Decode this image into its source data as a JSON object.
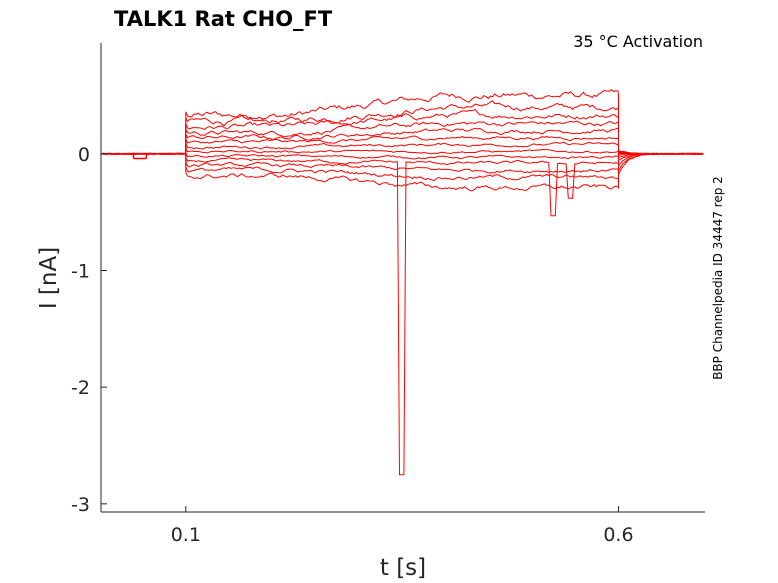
{
  "chart_data": {
    "type": "line",
    "title": "TALK1  Rat  CHO_FT",
    "annotation": "35 °C  Activation",
    "side_label": "BBP Channelpedia ID 34447 rep 2",
    "xlabel": "t [s]",
    "ylabel": "I [nA]",
    "xlim": [
      0.002,
      0.7
    ],
    "ylim": [
      -3.07,
      0.95
    ],
    "x_ticks": [
      {
        "value": 0.1,
        "label": "0.1"
      },
      {
        "value": 0.6,
        "label": "0.6"
      }
    ],
    "y_ticks": [
      {
        "value": 0,
        "label": "0"
      },
      {
        "value": -1,
        "label": "-1"
      },
      {
        "value": -2,
        "label": "-2"
      },
      {
        "value": -3,
        "label": "-3"
      }
    ],
    "grid": false,
    "line_color": "#ff0000",
    "step_start": 0.1,
    "step_end": 0.6,
    "steady_levels": [
      0.33,
      0.28,
      0.23,
      0.18,
      0.14,
      0.1,
      0.06,
      0.02,
      -0.02,
      -0.06,
      -0.1,
      -0.14,
      -0.19
    ],
    "late_levels": [
      0.5,
      0.4,
      0.33,
      0.26,
      0.2,
      0.14,
      0.08,
      0.02,
      -0.03,
      -0.08,
      -0.14,
      -0.2,
      -0.29
    ],
    "tail_values": [
      -0.18,
      -0.14,
      -0.1,
      -0.06,
      -0.03,
      -0.01,
      0.0,
      0.01,
      0.01,
      0.02,
      0.02,
      0.02,
      0.03
    ],
    "artifacts": [
      {
        "t": 0.35,
        "value": -2.75
      },
      {
        "t": 0.525,
        "value": -0.53
      },
      {
        "t": 0.545,
        "value": -0.38
      },
      {
        "t": 0.047,
        "value": -0.04
      }
    ]
  }
}
